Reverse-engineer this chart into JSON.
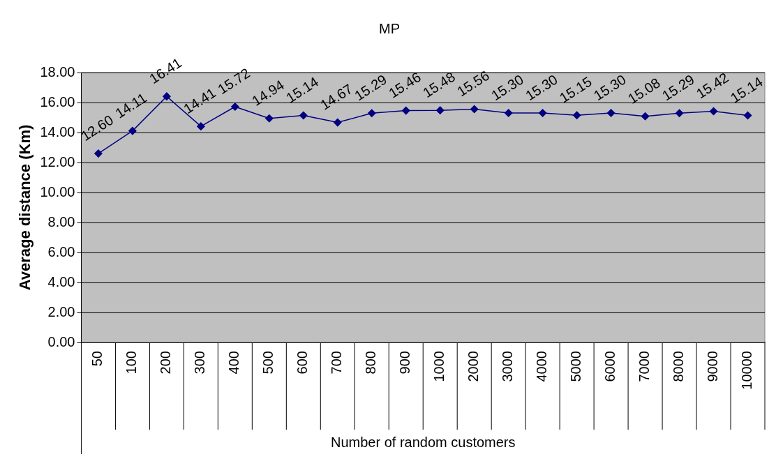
{
  "chart_data": {
    "type": "line",
    "title": "MP",
    "xlabel": "Number of random customers",
    "ylabel": "Average distance (Km)",
    "categories": [
      "50",
      "100",
      "200",
      "300",
      "400",
      "500",
      "600",
      "700",
      "800",
      "900",
      "1000",
      "2000",
      "3000",
      "4000",
      "5000",
      "6000",
      "7000",
      "8000",
      "9000",
      "10000"
    ],
    "series": [
      {
        "color": "#000080",
        "values": [
          12.6,
          14.11,
          16.41,
          14.41,
          15.72,
          14.94,
          15.14,
          14.67,
          15.29,
          15.46,
          15.48,
          15.56,
          15.3,
          15.3,
          15.15,
          15.3,
          15.08,
          15.29,
          15.42,
          15.14
        ],
        "value_labels": [
          "12.60",
          "14.11",
          "16.41",
          "14.41",
          "15.72",
          "14.94",
          "15.14",
          "14.67",
          "15.29",
          "15.46",
          "15.48",
          "15.56",
          "15.30",
          "15.30",
          "15.15",
          "15.30",
          "15.08",
          "15.29",
          "15.42",
          "15.14"
        ]
      }
    ],
    "ylim": [
      0,
      18
    ],
    "yticks": [
      {
        "value": 0,
        "label": "0.00"
      },
      {
        "value": 2,
        "label": "2.00"
      },
      {
        "value": 4,
        "label": "4.00"
      },
      {
        "value": 6,
        "label": "6.00"
      },
      {
        "value": 8,
        "label": "8.00"
      },
      {
        "value": 10,
        "label": "10.00"
      },
      {
        "value": 12,
        "label": "12.00"
      },
      {
        "value": 14,
        "label": "14.00"
      },
      {
        "value": 16,
        "label": "16.00"
      },
      {
        "value": 18,
        "label": "18.00"
      }
    ],
    "grid": "y",
    "legend": false,
    "marker": "diamond",
    "line_style": "solid"
  }
}
